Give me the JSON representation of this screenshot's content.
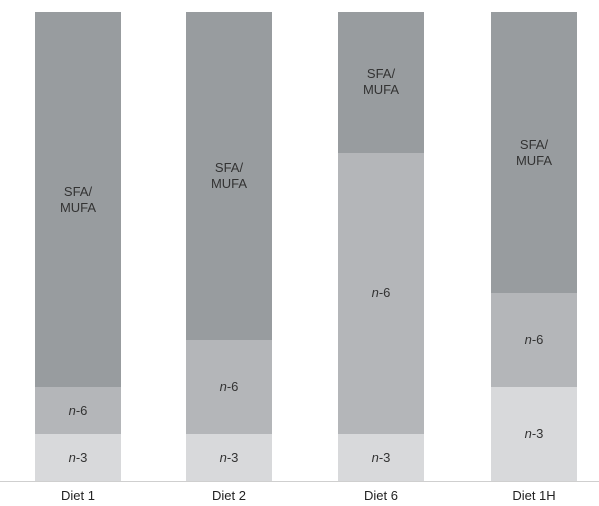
{
  "chart_data": {
    "type": "bar",
    "stacked": true,
    "categories": [
      "Diet 1",
      "Diet 2",
      "Diet 6",
      "Diet 1H"
    ],
    "ylim": [
      0,
      100
    ],
    "series": [
      {
        "name": "n-3",
        "color": "#d8d9db",
        "values": [
          10,
          10,
          10,
          20
        ]
      },
      {
        "name": "n-6",
        "color": "#b4b6b9",
        "values": [
          10,
          20,
          60,
          20
        ]
      },
      {
        "name": "SFA/ MUFA",
        "color": "#989c9f",
        "values": [
          80,
          70,
          30,
          60
        ]
      }
    ]
  }
}
